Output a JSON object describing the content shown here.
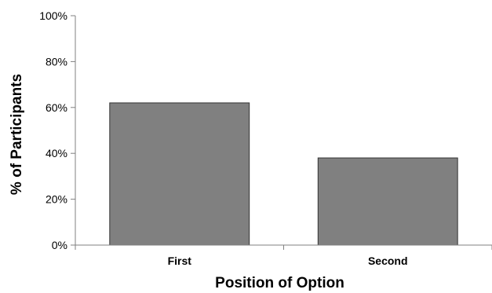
{
  "chart_data": {
    "type": "bar",
    "categories": [
      "First",
      "Second"
    ],
    "values": [
      62,
      38
    ],
    "yticks": [
      0,
      20,
      40,
      60,
      80,
      100
    ],
    "ytick_labels": [
      "0%",
      "20%",
      "40%",
      "60%",
      "80%",
      "100%"
    ],
    "ylim": [
      0,
      100
    ],
    "xlabel": "Position of Option",
    "ylabel": "% of Participants",
    "grid": false,
    "legend": "none",
    "colors": {
      "bar_fill": "#808080",
      "bar_stroke": "#333333",
      "axis": "#808080"
    }
  }
}
